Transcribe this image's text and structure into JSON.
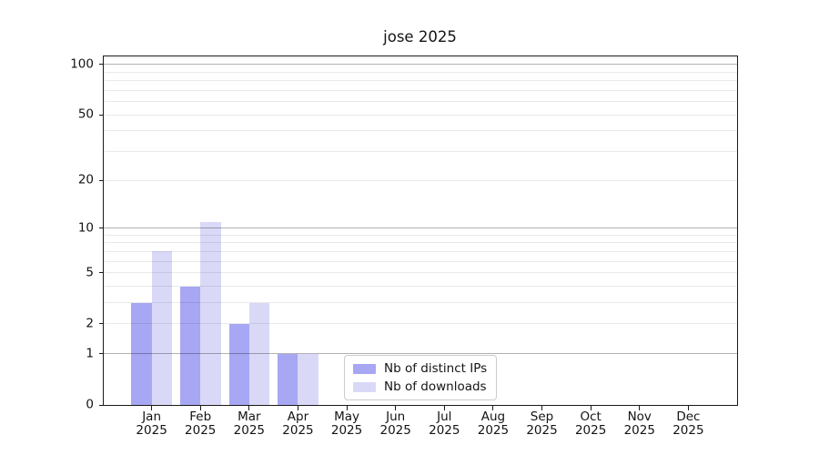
{
  "chart_data": {
    "type": "bar",
    "title": "jose 2025",
    "categories": [
      "Jan",
      "Feb",
      "Mar",
      "Apr",
      "May",
      "Jun",
      "Jul",
      "Aug",
      "Sep",
      "Oct",
      "Nov",
      "Dec"
    ],
    "year": "2025",
    "series": [
      {
        "name": "Nb of distinct IPs",
        "color": "#a7a7f4",
        "values": [
          3,
          4,
          2,
          1,
          0,
          0,
          0,
          0,
          0,
          0,
          0,
          0
        ]
      },
      {
        "name": "Nb of downloads",
        "color": "#d9d9f7",
        "values": [
          7,
          11,
          3,
          1,
          0,
          0,
          0,
          0,
          0,
          0,
          0,
          0
        ]
      }
    ],
    "y_axis": {
      "ticks": [
        0,
        1,
        2,
        5,
        10,
        20,
        50,
        100
      ],
      "scale": "log1p",
      "max": 113
    },
    "x_axis": {
      "tick_label_line2": "2025"
    },
    "grid": {
      "on": true,
      "major_values": [
        1,
        10,
        100
      ],
      "minor_values": [
        2,
        3,
        4,
        5,
        6,
        7,
        8,
        9,
        20,
        30,
        40,
        50,
        60,
        70,
        80,
        90,
        109
      ]
    },
    "legend": {
      "position": "lower center",
      "items": [
        "Nb of distinct IPs",
        "Nb of downloads"
      ]
    }
  }
}
